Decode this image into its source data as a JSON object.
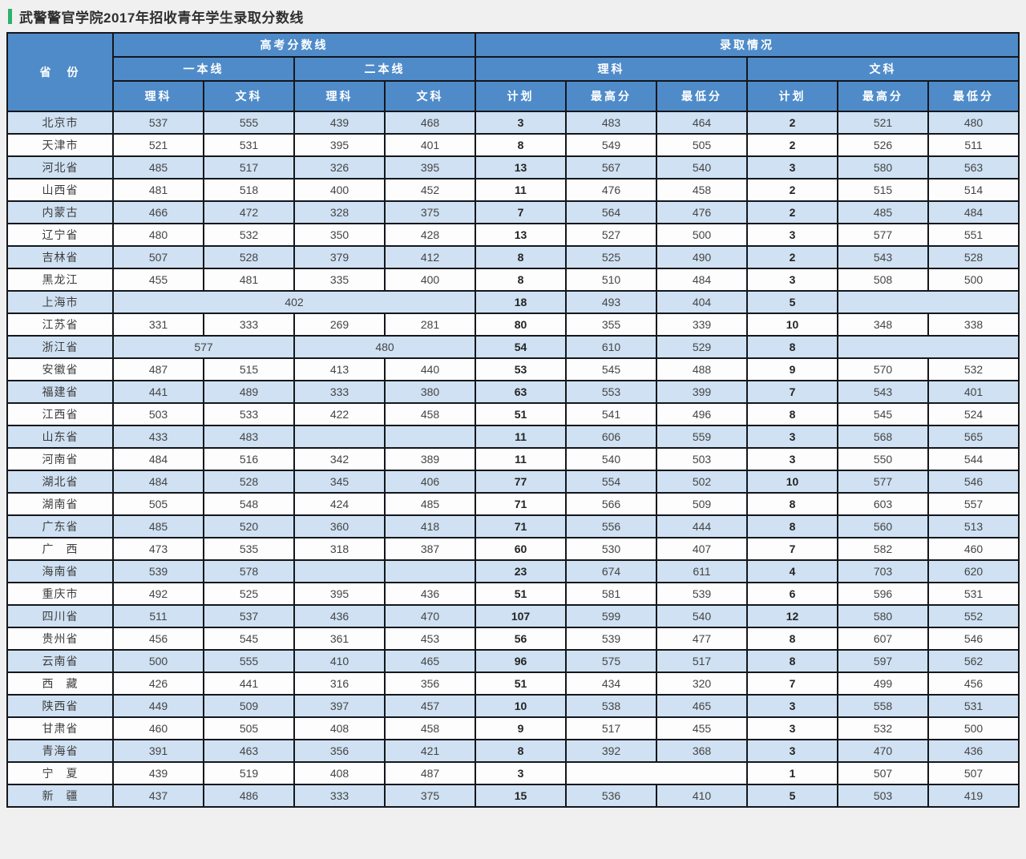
{
  "title": "武警警官学院2017年招收青年学生录取分数线",
  "colors": {
    "accent_green": "#2cb270",
    "header_blue": "#4f8bc9",
    "stripe_blue": "#cfe1f2",
    "row_white": "#fdfdfd",
    "border_dark": "#14171c"
  },
  "table": {
    "header": {
      "province": "省　份",
      "gaokao_line": "高考分数线",
      "admission": "录取情况",
      "tier1": "一本线",
      "tier2": "二本线",
      "science": "理科",
      "arts": "文科",
      "plan": "计划",
      "max_score": "最高分",
      "min_score": "最低分"
    },
    "rows": [
      {
        "province": "北京市",
        "cells": [
          "537",
          "555",
          "439",
          "468",
          "3",
          "483",
          "464",
          "2",
          "521",
          "480"
        ]
      },
      {
        "province": "天津市",
        "cells": [
          "521",
          "531",
          "395",
          "401",
          "8",
          "549",
          "505",
          "2",
          "526",
          "511"
        ]
      },
      {
        "province": "河北省",
        "cells": [
          "485",
          "517",
          "326",
          "395",
          "13",
          "567",
          "540",
          "3",
          "580",
          "563"
        ]
      },
      {
        "province": "山西省",
        "cells": [
          "481",
          "518",
          "400",
          "452",
          "11",
          "476",
          "458",
          "2",
          "515",
          "514"
        ]
      },
      {
        "province": "内蒙古",
        "cells": [
          "466",
          "472",
          "328",
          "375",
          "7",
          "564",
          "476",
          "2",
          "485",
          "484"
        ]
      },
      {
        "province": "辽宁省",
        "cells": [
          "480",
          "532",
          "350",
          "428",
          "13",
          "527",
          "500",
          "3",
          "577",
          "551"
        ]
      },
      {
        "province": "吉林省",
        "cells": [
          "507",
          "528",
          "379",
          "412",
          "8",
          "525",
          "490",
          "2",
          "543",
          "528"
        ]
      },
      {
        "province": "黑龙江",
        "cells": [
          "455",
          "481",
          "335",
          "400",
          "8",
          "510",
          "484",
          "3",
          "508",
          "500"
        ]
      },
      {
        "province": "上海市",
        "cells": [
          {
            "v": "402",
            "span": 4
          },
          "18",
          "493",
          "404",
          "5",
          {
            "v": "",
            "span": 2
          }
        ]
      },
      {
        "province": "江苏省",
        "cells": [
          "331",
          "333",
          "269",
          "281",
          "80",
          "355",
          "339",
          "10",
          "348",
          "338"
        ]
      },
      {
        "province": "浙江省",
        "cells": [
          {
            "v": "577",
            "span": 2
          },
          {
            "v": "480",
            "span": 2
          },
          "54",
          "610",
          "529",
          "8",
          {
            "v": "",
            "span": 2
          }
        ]
      },
      {
        "province": "安徽省",
        "cells": [
          "487",
          "515",
          "413",
          "440",
          "53",
          "545",
          "488",
          "9",
          "570",
          "532"
        ]
      },
      {
        "province": "福建省",
        "cells": [
          "441",
          "489",
          "333",
          "380",
          "63",
          "553",
          "399",
          "7",
          "543",
          "401"
        ]
      },
      {
        "province": "江西省",
        "cells": [
          "503",
          "533",
          "422",
          "458",
          "51",
          "541",
          "496",
          "8",
          "545",
          "524"
        ]
      },
      {
        "province": "山东省",
        "cells": [
          "433",
          "483",
          "",
          "",
          "11",
          "606",
          "559",
          "3",
          "568",
          "565"
        ]
      },
      {
        "province": "河南省",
        "cells": [
          "484",
          "516",
          "342",
          "389",
          "11",
          "540",
          "503",
          "3",
          "550",
          "544"
        ]
      },
      {
        "province": "湖北省",
        "cells": [
          "484",
          "528",
          "345",
          "406",
          "77",
          "554",
          "502",
          "10",
          "577",
          "546"
        ]
      },
      {
        "province": "湖南省",
        "cells": [
          "505",
          "548",
          "424",
          "485",
          "71",
          "566",
          "509",
          "8",
          "603",
          "557"
        ]
      },
      {
        "province": "广东省",
        "cells": [
          "485",
          "520",
          "360",
          "418",
          "71",
          "556",
          "444",
          "8",
          "560",
          "513"
        ]
      },
      {
        "province": "广　西",
        "cells": [
          "473",
          "535",
          "318",
          "387",
          "60",
          "530",
          "407",
          "7",
          "582",
          "460"
        ]
      },
      {
        "province": "海南省",
        "cells": [
          "539",
          "578",
          "",
          "",
          "23",
          "674",
          "611",
          "4",
          "703",
          "620"
        ]
      },
      {
        "province": "重庆市",
        "cells": [
          "492",
          "525",
          "395",
          "436",
          "51",
          "581",
          "539",
          "6",
          "596",
          "531"
        ]
      },
      {
        "province": "四川省",
        "cells": [
          "511",
          "537",
          "436",
          "470",
          "107",
          "599",
          "540",
          "12",
          "580",
          "552"
        ]
      },
      {
        "province": "贵州省",
        "cells": [
          "456",
          "545",
          "361",
          "453",
          "56",
          "539",
          "477",
          "8",
          "607",
          "546"
        ]
      },
      {
        "province": "云南省",
        "cells": [
          "500",
          "555",
          "410",
          "465",
          "96",
          "575",
          "517",
          "8",
          "597",
          "562"
        ]
      },
      {
        "province": "西　藏",
        "cells": [
          "426",
          "441",
          "316",
          "356",
          "51",
          "434",
          "320",
          "7",
          "499",
          "456"
        ]
      },
      {
        "province": "陕西省",
        "cells": [
          "449",
          "509",
          "397",
          "457",
          "10",
          "538",
          "465",
          "3",
          "558",
          "531"
        ]
      },
      {
        "province": "甘肃省",
        "cells": [
          "460",
          "505",
          "408",
          "458",
          "9",
          "517",
          "455",
          "3",
          "532",
          "500"
        ]
      },
      {
        "province": "青海省",
        "cells": [
          "391",
          "463",
          "356",
          "421",
          "8",
          "392",
          "368",
          "3",
          "470",
          "436"
        ]
      },
      {
        "province": "宁　夏",
        "cells": [
          "439",
          "519",
          "408",
          "487",
          "3",
          {
            "v": "",
            "span": 2
          },
          "1",
          "507",
          "507"
        ]
      },
      {
        "province": "新　疆",
        "cells": [
          "437",
          "486",
          "333",
          "375",
          "15",
          "536",
          "410",
          "5",
          "503",
          "419"
        ]
      }
    ]
  }
}
